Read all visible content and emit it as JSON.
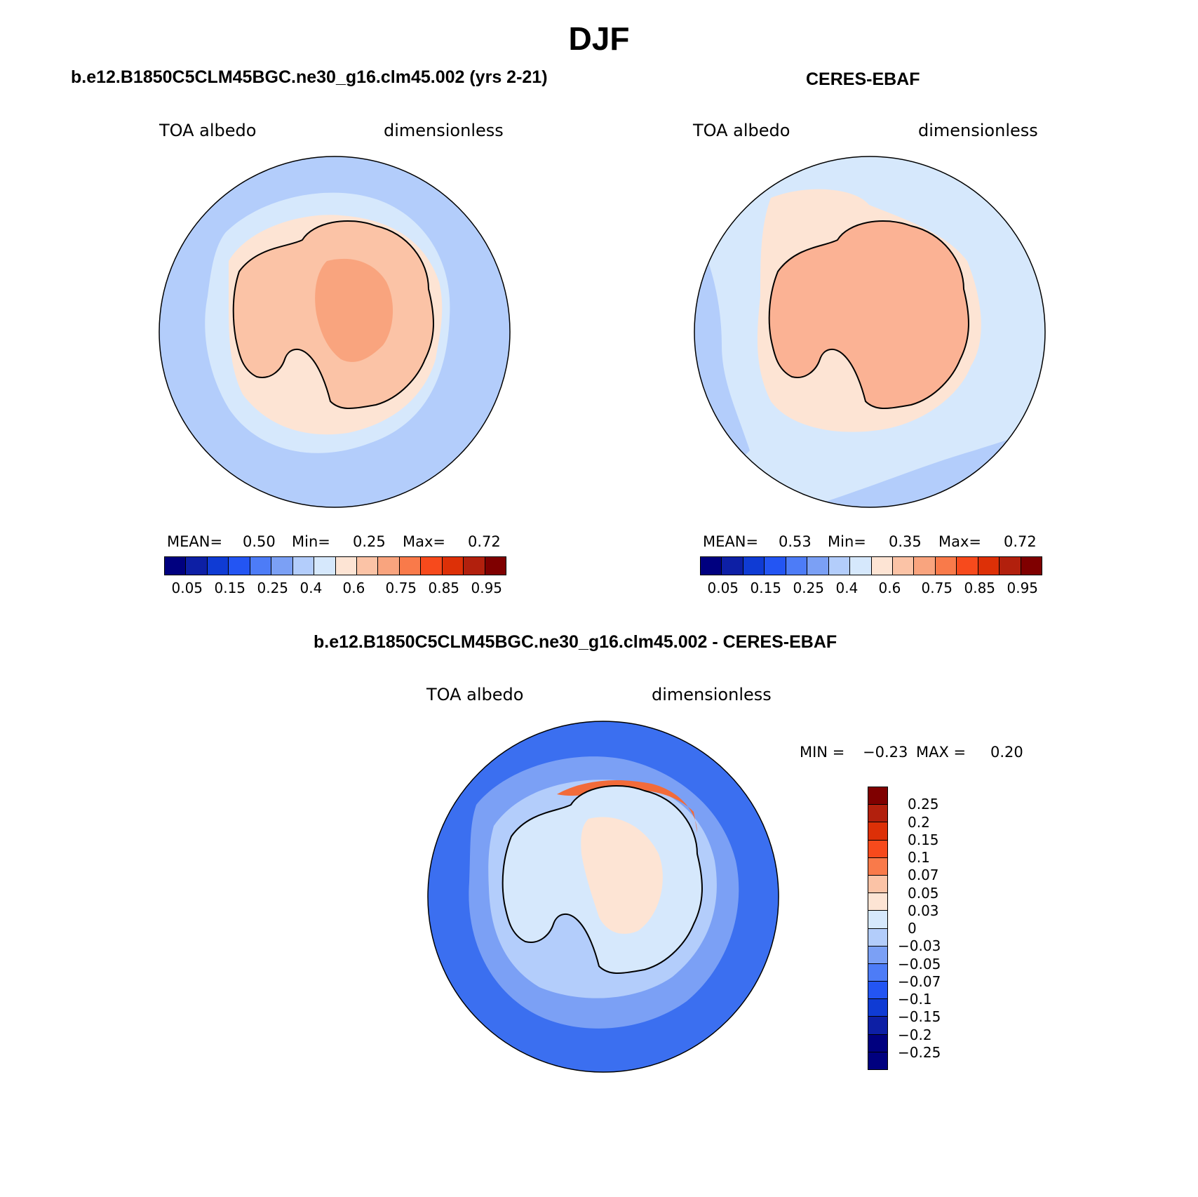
{
  "title": "DJF",
  "panels": [
    {
      "id": "model",
      "title": "b.e12.B1850C5CLM45BGC.ne30_g16.clm45.002 (yrs 2-21)",
      "left_label": "TOA albedo",
      "right_label": "dimensionless",
      "stats": {
        "mean_label": "MEAN=",
        "mean": "0.50",
        "min_label": "Min=",
        "min": "0.25",
        "max_label": "Max=",
        "max": "0.72"
      },
      "fill_colors": {
        "ocean": "#b3cdfb",
        "inner_ocean": "#d6e8fc",
        "ice_edge": "#fde4d4",
        "land": "#fbc3a6",
        "interior": "#f9a47e"
      }
    },
    {
      "id": "obs",
      "title": "CERES-EBAF",
      "left_label": "TOA albedo",
      "right_label": "dimensionless",
      "stats": {
        "mean_label": "MEAN=",
        "mean": "0.53",
        "min_label": "Min=",
        "min": "0.35",
        "max_label": "Max=",
        "max": "0.72"
      },
      "fill_colors": {
        "ocean": "#d6e8fc",
        "outer_ocean": "#b3cdfb",
        "ice_edge": "#fde4d4",
        "land": "#fbb294",
        "interior": "#f9a47e"
      }
    },
    {
      "id": "diff",
      "title": "b.e12.B1850C5CLM45BGC.ne30_g16.clm45.002 - CERES-EBAF",
      "left_label": "TOA albedo",
      "right_label": "dimensionless",
      "stats_text": {
        "min_label": "MIN =",
        "min": "−0.23",
        "max_label": "MAX =",
        "max": "0.20"
      },
      "fill_colors": {
        "outer": "#3b6ff0",
        "mid": "#7ba0f5",
        "inner": "#b3cdfb",
        "land": "#d6e8fc",
        "warm": "#fde4d4",
        "hot": "#f26b3a"
      }
    }
  ],
  "abs_colorbar": {
    "colors": [
      "#00007f",
      "#0d1fa5",
      "#0f3bd4",
      "#2355f3",
      "#4d7cf7",
      "#7ba0f5",
      "#b3cdfb",
      "#d6e8fc",
      "#fde4d4",
      "#fbc3a6",
      "#f9a47e",
      "#f97a4a",
      "#f74a1c",
      "#dd3007",
      "#b2200d",
      "#7f0000"
    ],
    "tick_labels": [
      "0.05",
      "0.15",
      "0.25",
      "0.4",
      "0.6",
      "0.75",
      "0.85",
      "0.95"
    ]
  },
  "diff_colorbar": {
    "colors": [
      "#7f0000",
      "#b2200d",
      "#dd3007",
      "#f74a1c",
      "#f97a4a",
      "#fbc3a6",
      "#fde4d4",
      "#d6e8fc",
      "#b3cdfb",
      "#7ba0f5",
      "#4d7cf7",
      "#2355f3",
      "#0f3bd4",
      "#0d1fa5",
      "#00007f",
      "#00007f"
    ],
    "tick_labels": [
      "0.25",
      "0.2",
      "0.15",
      "0.1",
      "0.07",
      "0.05",
      "0.03",
      "0",
      "−0.03",
      "−0.05",
      "−0.07",
      "−0.1",
      "−0.15",
      "−0.2",
      "−0.25"
    ]
  }
}
